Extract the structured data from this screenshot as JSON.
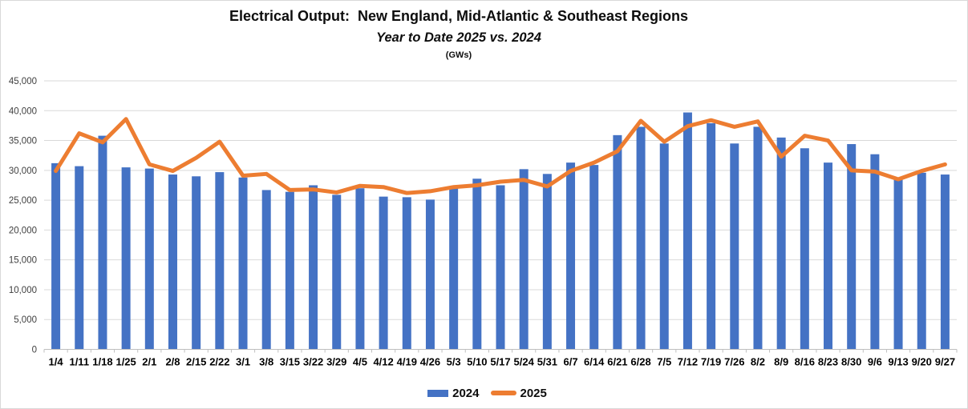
{
  "title": "Electrical Output:  New England, Mid-Atlantic & Southeast Regions",
  "subtitle": "Year to Date 2025 vs. 2024",
  "units_label": "(GWs)",
  "colors": {
    "bar_2024": "#4472C4",
    "line_2025": "#ED7D31",
    "gridline": "#D9D9D9",
    "axis": "#BFBFBF",
    "y_tick_label": "#404040",
    "x_tick_label": "#000000"
  },
  "legend": {
    "items": [
      {
        "label": "2024",
        "swatch": "bar"
      },
      {
        "label": "2025",
        "swatch": "line"
      }
    ],
    "position": "bottom"
  },
  "chart_data": {
    "type": "bar",
    "note": "weekly electrical output, bars = 2024, line overlay = 2025",
    "categories": [
      "1/4",
      "1/11",
      "1/18",
      "1/25",
      "2/1",
      "2/8",
      "2/15",
      "2/22",
      "3/1",
      "3/8",
      "3/15",
      "3/22",
      "3/29",
      "4/5",
      "4/12",
      "4/19",
      "4/26",
      "5/3",
      "5/10",
      "5/17",
      "5/24",
      "5/31",
      "6/7",
      "6/14",
      "6/21",
      "6/28",
      "7/5",
      "7/12",
      "7/19",
      "7/26",
      "8/2",
      "8/9",
      "8/16",
      "8/23",
      "8/30",
      "9/6",
      "9/13",
      "9/20",
      "9/27"
    ],
    "series": [
      {
        "name": "2024",
        "type": "bar",
        "values": [
          31200,
          30700,
          35800,
          30500,
          30300,
          29300,
          29000,
          29700,
          28800,
          26700,
          26400,
          27500,
          25900,
          27000,
          25600,
          25500,
          25100,
          27300,
          28600,
          27500,
          30200,
          29400,
          31300,
          30900,
          35900,
          37300,
          34500,
          39700,
          37900,
          34500,
          37300,
          35500,
          33700,
          31300,
          34400,
          32700,
          28500,
          29600,
          29300
        ]
      },
      {
        "name": "2025",
        "type": "line",
        "values": [
          29900,
          36200,
          34700,
          38600,
          31000,
          29900,
          32100,
          34800,
          29100,
          29400,
          26700,
          26800,
          26300,
          27400,
          27200,
          26200,
          26500,
          27200,
          27500,
          28100,
          28400,
          27300,
          29900,
          31300,
          33200,
          38300,
          34800,
          37400,
          38400,
          37300,
          38200,
          32300,
          35800,
          35000,
          30000,
          29800,
          28500,
          29900,
          31000
        ]
      }
    ],
    "title": "Electrical Output:  New England, Mid-Atlantic & Southeast Regions",
    "xlabel": "",
    "ylabel": "",
    "ylim": [
      0,
      45000
    ],
    "ytick_step": 5000,
    "ytick_labels": [
      "0",
      "5,000",
      "10,000",
      "15,000",
      "20,000",
      "25,000",
      "30,000",
      "35,000",
      "40,000",
      "45,000"
    ],
    "grid": true,
    "legend_position": "bottom"
  }
}
